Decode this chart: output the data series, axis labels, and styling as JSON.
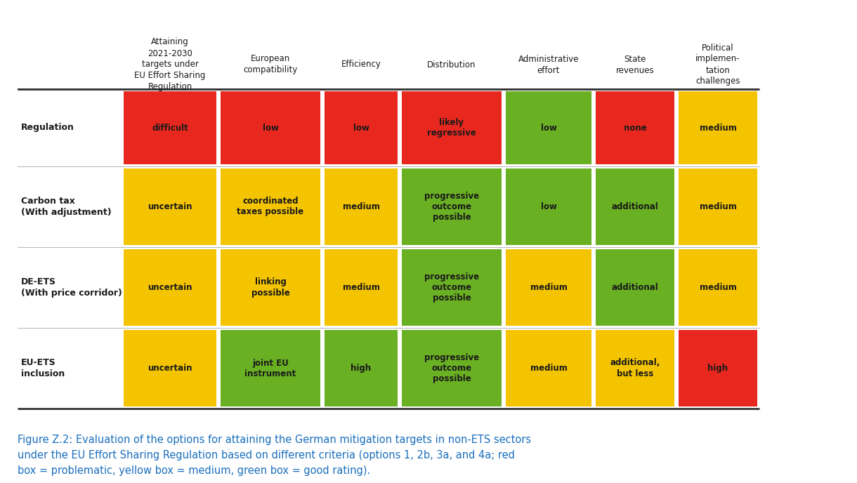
{
  "rows": [
    {
      "label_line1": "Regulation",
      "label_line2": "",
      "cells": [
        {
          "text": "difficult",
          "color": "#e8281e"
        },
        {
          "text": "low",
          "color": "#e8281e"
        },
        {
          "text": "low",
          "color": "#e8281e"
        },
        {
          "text": "likely\nregressive",
          "color": "#e8281e"
        },
        {
          "text": "low",
          "color": "#6ab023"
        },
        {
          "text": "none",
          "color": "#e8281e"
        },
        {
          "text": "medium",
          "color": "#f5c400"
        }
      ]
    },
    {
      "label_line1": "Carbon tax",
      "label_line2": "(With adjustment)",
      "cells": [
        {
          "text": "uncertain",
          "color": "#f5c400"
        },
        {
          "text": "coordinated\ntaxes possible",
          "color": "#f5c400"
        },
        {
          "text": "medium",
          "color": "#f5c400"
        },
        {
          "text": "progressive\noutcome\npossible",
          "color": "#6ab023"
        },
        {
          "text": "low",
          "color": "#6ab023"
        },
        {
          "text": "additional",
          "color": "#6ab023"
        },
        {
          "text": "medium",
          "color": "#f5c400"
        }
      ]
    },
    {
      "label_line1": "DE-ETS",
      "label_line2": "(With price corridor)",
      "cells": [
        {
          "text": "uncertain",
          "color": "#f5c400"
        },
        {
          "text": "linking\npossible",
          "color": "#f5c400"
        },
        {
          "text": "medium",
          "color": "#f5c400"
        },
        {
          "text": "progressive\noutcome\npossible",
          "color": "#6ab023"
        },
        {
          "text": "medium",
          "color": "#f5c400"
        },
        {
          "text": "additional",
          "color": "#6ab023"
        },
        {
          "text": "medium",
          "color": "#f5c400"
        }
      ]
    },
    {
      "label_line1": "EU-ETS",
      "label_line2": "inclusion",
      "cells": [
        {
          "text": "uncertain",
          "color": "#f5c400"
        },
        {
          "text": "joint EU\ninstrument",
          "color": "#6ab023"
        },
        {
          "text": "high",
          "color": "#6ab023"
        },
        {
          "text": "progressive\noutcome\npossible",
          "color": "#6ab023"
        },
        {
          "text": "medium",
          "color": "#f5c400"
        },
        {
          "text": "additional,\nbut less",
          "color": "#f5c400"
        },
        {
          "text": "high",
          "color": "#e8281e"
        }
      ]
    }
  ],
  "col_headers": [
    "Attaining\n2021-2030\ntargets under\nEU Effort Sharing\nRegulation",
    "European\ncompatibility",
    "Efficiency",
    "Distribution",
    "Administrative\neffort",
    "State\nrevenues",
    "Political\nimplemen-\ntation\nchallenges"
  ],
  "caption": "Figure Z.2: Evaluation of the options for attaining the German mitigation targets in non-ETS sectors\nunder the EU Effort Sharing Regulation based on different criteria (options 1, 2b, 3a, and 4a; red\nbox = problematic, yellow box = medium, green box = good rating).",
  "caption_color": "#1a6fbd",
  "background_color": "#ffffff",
  "text_color": "#1a1a1a",
  "cell_text_color": "#1a1a1a",
  "header_fontsize": 8.5,
  "cell_fontsize": 8.5,
  "row_label_fontsize": 9
}
